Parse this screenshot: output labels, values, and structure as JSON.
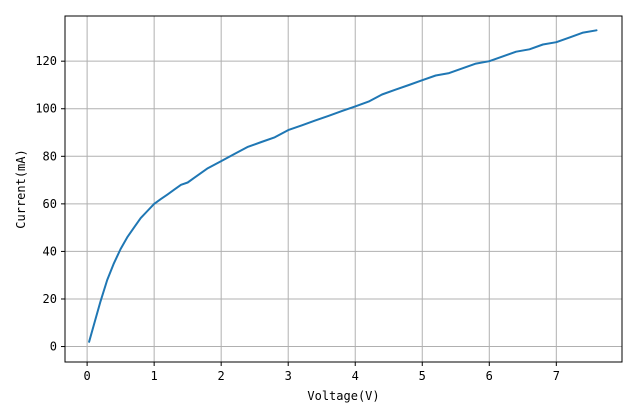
{
  "chart_data": {
    "type": "line",
    "title": "",
    "xlabel": "Voltage(V)",
    "ylabel": "Current(mA)",
    "xlim": [
      -0.33,
      7.98
    ],
    "ylim": [
      -6.5,
      139
    ],
    "xticks": [
      0,
      1,
      2,
      3,
      4,
      5,
      6,
      7
    ],
    "yticks": [
      0,
      20,
      40,
      60,
      80,
      100,
      120
    ],
    "grid": true,
    "legend": "none",
    "series": [
      {
        "color": "#1f77b4",
        "x": [
          0.03,
          0.1,
          0.2,
          0.3,
          0.4,
          0.5,
          0.6,
          0.7,
          0.8,
          0.9,
          1.0,
          1.1,
          1.2,
          1.3,
          1.4,
          1.5,
          1.6,
          1.8,
          2.0,
          2.2,
          2.4,
          2.6,
          2.8,
          3.0,
          3.2,
          3.4,
          3.6,
          3.8,
          4.0,
          4.2,
          4.4,
          4.6,
          4.8,
          5.0,
          5.2,
          5.4,
          5.6,
          5.8,
          6.0,
          6.2,
          6.4,
          6.6,
          6.8,
          7.0,
          7.2,
          7.4,
          7.6
        ],
        "y": [
          2,
          9,
          19,
          28,
          35,
          41,
          46,
          50,
          54,
          57,
          60,
          62,
          64,
          66,
          68,
          69,
          71,
          75,
          78,
          81,
          84,
          86,
          88,
          91,
          93,
          95,
          97,
          99,
          101,
          103,
          106,
          108,
          110,
          112,
          114,
          115,
          117,
          119,
          120,
          122,
          124,
          125,
          127,
          128,
          130,
          132,
          133
        ]
      }
    ]
  }
}
